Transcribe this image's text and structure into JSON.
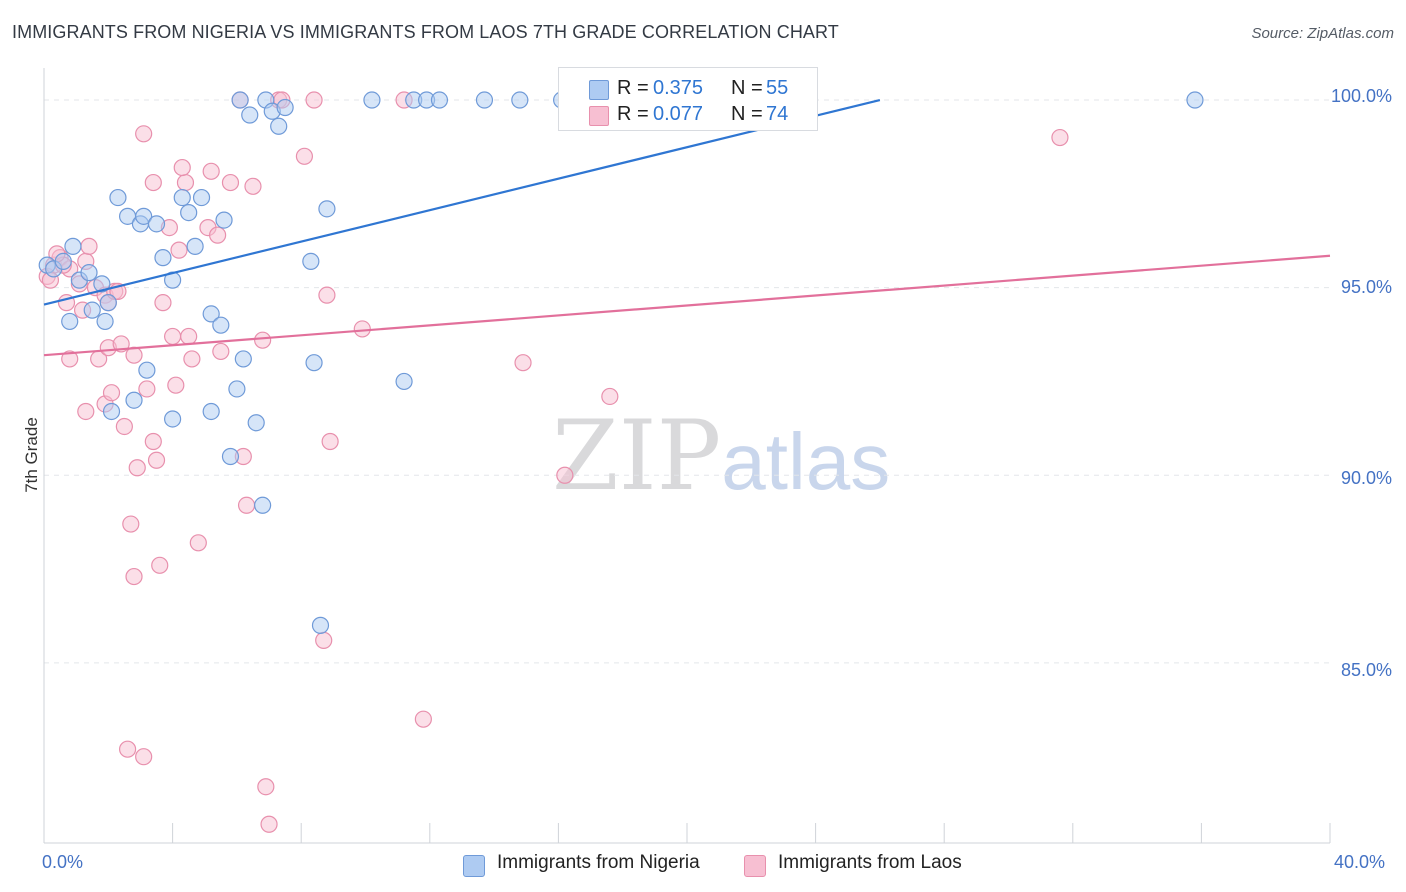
{
  "title": "IMMIGRANTS FROM NIGERIA VS IMMIGRANTS FROM LAOS 7TH GRADE CORRELATION CHART",
  "source": "Source: ZipAtlas.com",
  "watermark": {
    "zip": "ZIP",
    "atlas": "atlas"
  },
  "colors": {
    "nigeria_fill": "#aecbf2",
    "nigeria_stroke": "#6f9ad8",
    "nigeria_line": "#2f76d2",
    "laos_fill": "#f7bfd2",
    "laos_stroke": "#e890ad",
    "laos_line": "#e2709b",
    "tick_text": "#4472c4",
    "grid": "#e3e6ea"
  },
  "legend_top": {
    "nigeria": {
      "r_label": "R =",
      "r_value": "0.375",
      "n_label": "N =",
      "n_value": "55"
    },
    "laos": {
      "r_label": "R =",
      "r_value": "0.077",
      "n_label": "N =",
      "n_value": "74"
    }
  },
  "chart_data": {
    "type": "scatter",
    "title": "IMMIGRANTS FROM NIGERIA VS IMMIGRANTS FROM LAOS 7TH GRADE CORRELATION CHART",
    "xlabel": "",
    "ylabel": "7th Grade",
    "xlim": [
      0,
      40
    ],
    "ylim": [
      80.2,
      100.8
    ],
    "x_tick_labels": {
      "min": "0.0%",
      "max": "40.0%"
    },
    "y_ticks": [
      {
        "value": 100,
        "label": "100.0%"
      },
      {
        "value": 95,
        "label": "95.0%"
      },
      {
        "value": 90,
        "label": "90.0%"
      },
      {
        "value": 85,
        "label": "85.0%"
      }
    ],
    "grid": true,
    "legend": "bottom-center",
    "series": [
      {
        "name": "Immigrants from Nigeria",
        "r": 0.375,
        "n": 55,
        "trend": {
          "x": [
            0.0,
            26.0
          ],
          "y": [
            94.55,
            100.0
          ]
        },
        "points": [
          [
            0.1,
            95.6
          ],
          [
            0.3,
            95.5
          ],
          [
            0.6,
            95.7
          ],
          [
            0.9,
            96.1
          ],
          [
            1.1,
            95.2
          ],
          [
            0.8,
            94.1
          ],
          [
            1.4,
            95.4
          ],
          [
            1.5,
            94.4
          ],
          [
            1.8,
            95.1
          ],
          [
            2.0,
            94.6
          ],
          [
            1.9,
            94.1
          ],
          [
            2.3,
            97.4
          ],
          [
            2.6,
            96.9
          ],
          [
            3.0,
            96.7
          ],
          [
            3.1,
            96.9
          ],
          [
            3.5,
            96.7
          ],
          [
            3.7,
            95.8
          ],
          [
            4.0,
            95.2
          ],
          [
            4.3,
            97.4
          ],
          [
            4.5,
            97.0
          ],
          [
            4.7,
            96.1
          ],
          [
            4.9,
            97.4
          ],
          [
            5.2,
            94.3
          ],
          [
            5.5,
            94.0
          ],
          [
            5.6,
            96.8
          ],
          [
            3.2,
            92.8
          ],
          [
            2.8,
            92.0
          ],
          [
            2.1,
            91.7
          ],
          [
            4.0,
            91.5
          ],
          [
            5.2,
            91.7
          ],
          [
            5.8,
            90.5
          ],
          [
            6.0,
            92.3
          ],
          [
            6.2,
            93.1
          ],
          [
            6.6,
            91.4
          ],
          [
            6.8,
            89.2
          ],
          [
            6.1,
            100.0
          ],
          [
            6.4,
            99.6
          ],
          [
            6.9,
            100.0
          ],
          [
            7.1,
            99.7
          ],
          [
            7.3,
            99.3
          ],
          [
            7.5,
            99.8
          ],
          [
            8.3,
            95.7
          ],
          [
            8.4,
            93.0
          ],
          [
            8.8,
            97.1
          ],
          [
            8.6,
            86.0
          ],
          [
            10.2,
            100.0
          ],
          [
            11.5,
            100.0
          ],
          [
            11.9,
            100.0
          ],
          [
            12.3,
            100.0
          ],
          [
            11.2,
            92.5
          ],
          [
            13.7,
            100.0
          ],
          [
            14.8,
            100.0
          ],
          [
            16.1,
            100.0
          ],
          [
            16.6,
            100.0
          ],
          [
            35.8,
            100.0
          ]
        ]
      },
      {
        "name": "Immigrants from Laos",
        "r": 0.077,
        "n": 74,
        "trend": {
          "x": [
            0.0,
            40.0
          ],
          "y": [
            93.2,
            95.85
          ]
        },
        "points": [
          [
            0.1,
            95.3
          ],
          [
            0.3,
            95.6
          ],
          [
            0.5,
            95.8
          ],
          [
            0.8,
            95.5
          ],
          [
            0.7,
            94.6
          ],
          [
            0.8,
            93.1
          ],
          [
            1.1,
            95.1
          ],
          [
            1.2,
            94.4
          ],
          [
            1.3,
            95.7
          ],
          [
            1.6,
            95.0
          ],
          [
            1.3,
            91.7
          ],
          [
            1.7,
            93.1
          ],
          [
            1.9,
            91.9
          ],
          [
            1.9,
            94.8
          ],
          [
            2.0,
            94.6
          ],
          [
            2.0,
            93.4
          ],
          [
            2.1,
            92.2
          ],
          [
            2.2,
            94.9
          ],
          [
            2.4,
            93.5
          ],
          [
            2.5,
            91.3
          ],
          [
            2.8,
            93.2
          ],
          [
            2.7,
            88.7
          ],
          [
            2.8,
            87.3
          ],
          [
            2.9,
            90.2
          ],
          [
            3.2,
            92.3
          ],
          [
            3.4,
            90.9
          ],
          [
            3.5,
            90.4
          ],
          [
            3.4,
            97.8
          ],
          [
            3.6,
            87.6
          ],
          [
            3.7,
            94.6
          ],
          [
            3.9,
            96.6
          ],
          [
            4.0,
            93.7
          ],
          [
            4.1,
            92.4
          ],
          [
            4.2,
            96.0
          ],
          [
            4.4,
            97.8
          ],
          [
            4.3,
            98.2
          ],
          [
            4.5,
            93.7
          ],
          [
            4.6,
            93.1
          ],
          [
            4.8,
            88.2
          ],
          [
            5.1,
            96.6
          ],
          [
            5.2,
            98.1
          ],
          [
            5.4,
            96.4
          ],
          [
            5.5,
            93.3
          ],
          [
            5.8,
            97.8
          ],
          [
            6.1,
            100.0
          ],
          [
            6.2,
            90.5
          ],
          [
            6.3,
            89.2
          ],
          [
            6.5,
            97.7
          ],
          [
            6.8,
            93.6
          ],
          [
            6.9,
            81.7
          ],
          [
            7.0,
            80.7
          ],
          [
            7.3,
            100.0
          ],
          [
            7.4,
            100.0
          ],
          [
            8.1,
            98.5
          ],
          [
            8.4,
            100.0
          ],
          [
            8.8,
            94.8
          ],
          [
            8.9,
            90.9
          ],
          [
            8.7,
            85.6
          ],
          [
            9.9,
            93.9
          ],
          [
            11.2,
            100.0
          ],
          [
            11.8,
            83.5
          ],
          [
            14.9,
            93.0
          ],
          [
            16.3,
            100.0
          ],
          [
            16.2,
            90.0
          ],
          [
            17.6,
            92.1
          ],
          [
            31.6,
            99.0
          ],
          [
            2.6,
            82.7
          ],
          [
            3.1,
            82.5
          ],
          [
            3.1,
            99.1
          ],
          [
            0.2,
            95.2
          ],
          [
            0.6,
            95.6
          ],
          [
            1.4,
            96.1
          ],
          [
            2.3,
            94.9
          ],
          [
            0.4,
            95.9
          ]
        ]
      }
    ]
  }
}
